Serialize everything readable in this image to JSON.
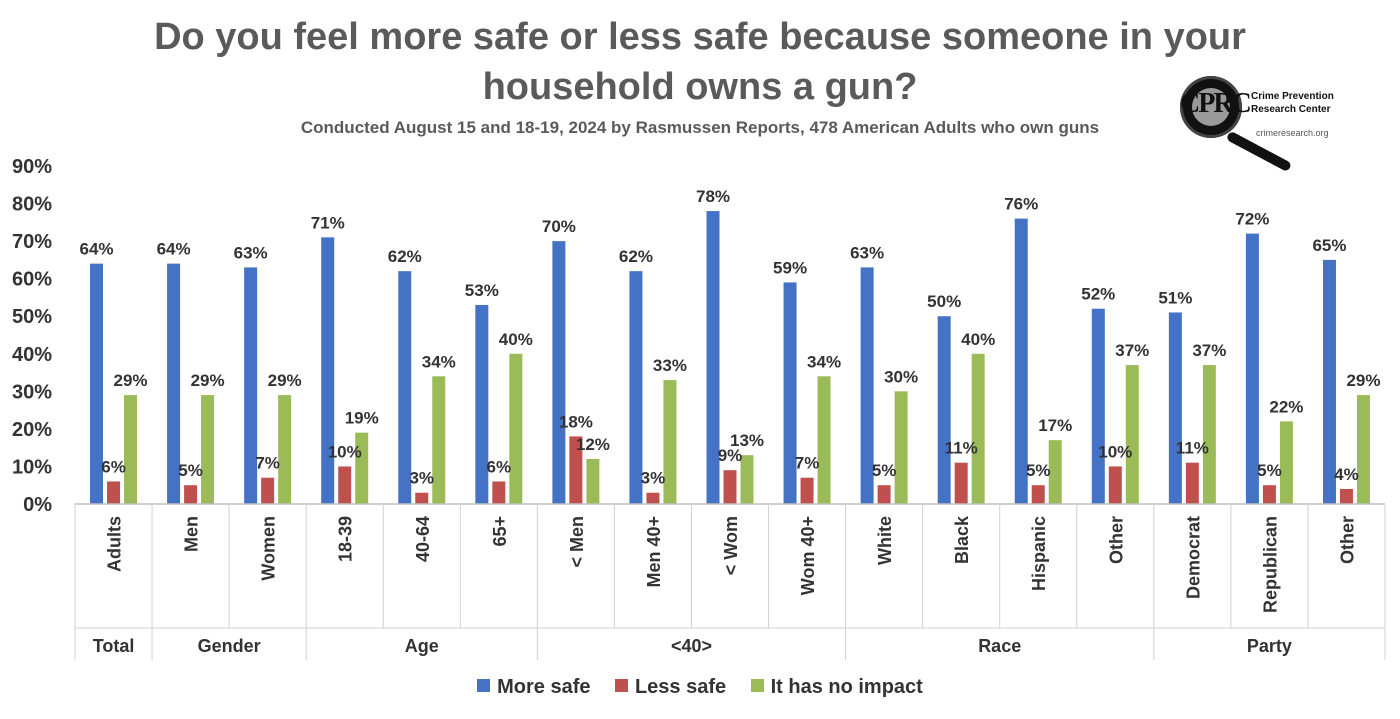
{
  "chart_data": {
    "type": "bar",
    "title_lines": [
      "Do you feel more safe or less safe because someone in your",
      "household owns a gun?"
    ],
    "subtitle": "Conducted August 15 and 18-19, 2024 by Rasmussen Reports, 478 American Adults who own guns",
    "categories": [
      "Adults",
      "Men",
      "Women",
      "18-39",
      "40-64",
      "65+",
      "< Men",
      "Men 40+",
      "< Wom",
      "Wom 40+",
      "White",
      "Black",
      "Hispanic",
      "Other",
      "Democrat",
      "Republican",
      "Other"
    ],
    "groups": [
      {
        "label": "Total",
        "size": 1
      },
      {
        "label": "Gender",
        "size": 2
      },
      {
        "label": "Age",
        "size": 3
      },
      {
        "label": "<40>",
        "size": 4
      },
      {
        "label": "Race",
        "size": 4
      },
      {
        "label": "Party",
        "size": 3
      }
    ],
    "series": [
      {
        "name": "More safe",
        "color": "#4472c4",
        "values": [
          64,
          64,
          63,
          71,
          62,
          53,
          70,
          62,
          78,
          59,
          63,
          50,
          76,
          52,
          51,
          72,
          65
        ],
        "labels": [
          "64%",
          "64%",
          "63%",
          "71%",
          "62%",
          "53%",
          "70%",
          "62%",
          "78%",
          "59%",
          "63%",
          "50%",
          "76%",
          "52%",
          "51%",
          "72%",
          "65%"
        ]
      },
      {
        "name": "Less safe",
        "color": "#c0504d",
        "values": [
          6,
          5,
          7,
          10,
          3,
          6,
          18,
          3,
          9,
          7,
          5,
          11,
          5,
          10,
          11,
          5,
          4
        ],
        "labels": [
          "6%",
          "5%",
          "7%",
          "10%",
          "3%",
          "6%",
          "18%",
          "3%",
          "9%",
          "7%",
          "5%",
          "11%",
          "5%",
          "10%",
          "11%",
          "5%",
          "4%"
        ]
      },
      {
        "name": "It has no impact",
        "color": "#9bbb59",
        "values": [
          29,
          29,
          29,
          19,
          34,
          40,
          12,
          33,
          13,
          34,
          30,
          40,
          17,
          37,
          37,
          22,
          29
        ],
        "labels": [
          "29%",
          "29%",
          "29%",
          "19%",
          "34%",
          "40%",
          "12%",
          "33%",
          "13%",
          "34%",
          "30%",
          "40%",
          "17%",
          "37%",
          "37%",
          "22%",
          "29%"
        ]
      }
    ],
    "y_ticks": [
      "0%",
      "10%",
      "20%",
      "30%",
      "40%",
      "50%",
      "60%",
      "70%",
      "80%",
      "90%"
    ],
    "ylim": [
      0,
      90
    ],
    "grid": false,
    "legend_position": "bottom"
  },
  "logo": {
    "monogram": "CPRC",
    "name_line1": "Crime Prevention",
    "name_line2": "Research Center",
    "url": "crimeresearch.org"
  }
}
